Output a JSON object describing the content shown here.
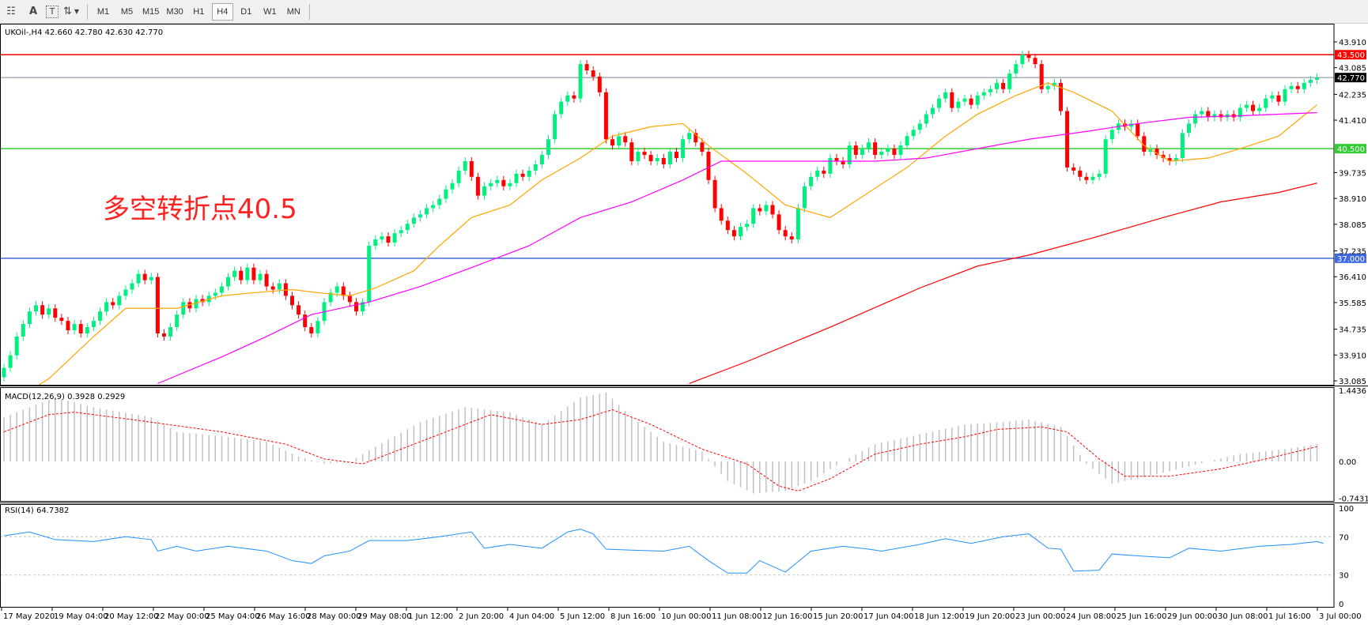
{
  "toolbar": {
    "icons": [
      "period-separator-icon",
      "text-A-icon",
      "text-label-icon",
      "arrows-icon"
    ],
    "timeframes": [
      "M1",
      "M5",
      "M15",
      "M30",
      "H1",
      "H4",
      "D1",
      "W1",
      "MN"
    ],
    "active_timeframe": "H4"
  },
  "main": {
    "symbol_header": "UKOil-,H4  42.660 42.780 42.630 42.770",
    "annotation": "多空转折点40.5",
    "annotation_color": "#ff0000",
    "price_ticks": [
      "43.910",
      "43.085",
      "42.235",
      "41.410",
      "39.735",
      "38.910",
      "38.085",
      "37.235",
      "36.410",
      "35.585",
      "34.735",
      "33.910",
      "33.085"
    ],
    "lines": [
      {
        "price": 43.5,
        "label": "43.500",
        "color": "#ff0000"
      },
      {
        "price": 42.77,
        "label": "42.770",
        "color": "#000000",
        "line_color": "#778899"
      },
      {
        "price": 40.5,
        "label": "40.500",
        "color": "#32cd32"
      },
      {
        "price": 37.0,
        "label": "37.000",
        "color": "#4169e1"
      }
    ]
  },
  "chart_data": [
    {
      "type": "candlestick",
      "title": "UKOil-,H4",
      "ylim": [
        33.085,
        43.91
      ],
      "bull_color": "#00f080",
      "bear_color": "#ff0000",
      "close": [
        33.5,
        33.9,
        34.5,
        34.9,
        35.3,
        35.5,
        35.2,
        35.4,
        35.1,
        35.0,
        34.7,
        34.9,
        34.6,
        34.8,
        35.0,
        35.3,
        35.6,
        35.5,
        35.8,
        36.0,
        36.2,
        36.5,
        36.3,
        36.4,
        34.6,
        34.5,
        34.8,
        35.2,
        35.6,
        35.4,
        35.7,
        35.6,
        35.8,
        35.9,
        36.1,
        36.4,
        36.6,
        36.3,
        36.7,
        36.3,
        36.5,
        36.1,
        36.0,
        36.2,
        35.8,
        35.5,
        35.2,
        34.8,
        34.6,
        35.0,
        35.6,
        35.9,
        36.1,
        35.8,
        35.6,
        35.3,
        35.6,
        37.4,
        37.6,
        37.7,
        37.5,
        37.8,
        37.9,
        38.1,
        38.3,
        38.4,
        38.6,
        38.7,
        38.9,
        39.2,
        39.4,
        39.8,
        40.1,
        39.6,
        39.0,
        39.3,
        39.4,
        39.5,
        39.3,
        39.4,
        39.7,
        39.6,
        39.8,
        40.0,
        40.3,
        40.8,
        41.6,
        42.0,
        42.2,
        42.1,
        43.2,
        43.0,
        42.8,
        42.3,
        40.8,
        40.6,
        40.9,
        40.7,
        40.1,
        40.4,
        40.3,
        40.1,
        40.2,
        40.0,
        40.4,
        40.2,
        40.8,
        41.0,
        40.7,
        40.4,
        39.5,
        38.6,
        38.2,
        37.9,
        37.7,
        38.0,
        38.1,
        38.6,
        38.5,
        38.7,
        38.4,
        37.9,
        37.7,
        37.6,
        38.6,
        39.3,
        39.6,
        39.8,
        39.7,
        40.2,
        40.1,
        40.0,
        40.6,
        40.3,
        40.5,
        40.7,
        40.3,
        40.4,
        40.5,
        40.3,
        40.6,
        40.9,
        41.1,
        41.3,
        41.6,
        41.8,
        42.1,
        42.3,
        41.8,
        42.0,
        42.1,
        41.9,
        42.2,
        42.3,
        42.4,
        42.6,
        42.4,
        42.9,
        43.2,
        43.5,
        43.4,
        43.2,
        42.4,
        42.5,
        42.6,
        41.7,
        39.9,
        39.8,
        39.6,
        39.5,
        39.6,
        39.7,
        40.8,
        41.1,
        41.3,
        41.2,
        41.3,
        40.9,
        40.4,
        40.5,
        40.3,
        40.2,
        40.1,
        40.2,
        41.0,
        41.3,
        41.6,
        41.7,
        41.5,
        41.6,
        41.5,
        41.6,
        41.5,
        41.8,
        41.9,
        41.7,
        41.8,
        42.1,
        42.2,
        42.0,
        42.4,
        42.5,
        42.4,
        42.6,
        42.7,
        42.77
      ],
      "moving_averages": [
        {
          "color": "#ffa500",
          "points": [
            [
              5,
              32.9
            ],
            [
              7,
              33.15
            ],
            [
              14,
              34.5
            ],
            [
              19,
              35.4
            ],
            [
              24,
              35.4
            ],
            [
              27,
              35.4
            ],
            [
              34,
              35.8
            ],
            [
              39,
              35.9
            ],
            [
              45,
              36.0
            ],
            [
              49,
              35.9
            ],
            [
              54,
              35.8
            ],
            [
              58,
              36.05
            ],
            [
              64,
              36.6
            ],
            [
              68,
              37.4
            ],
            [
              73,
              38.3
            ],
            [
              79,
              38.7
            ],
            [
              84,
              39.5
            ],
            [
              90,
              40.2
            ],
            [
              95,
              40.9
            ],
            [
              101,
              41.2
            ],
            [
              106,
              41.3
            ],
            [
              110,
              40.6
            ],
            [
              116,
              39.7
            ],
            [
              122,
              38.7
            ],
            [
              129,
              38.3
            ],
            [
              135,
              39.1
            ],
            [
              141,
              39.9
            ],
            [
              147,
              40.9
            ],
            [
              152,
              41.6
            ],
            [
              158,
              42.2
            ],
            [
              163,
              42.6
            ],
            [
              167,
              42.3
            ],
            [
              173,
              41.7
            ],
            [
              178,
              40.6
            ],
            [
              182,
              40.1
            ],
            [
              188,
              40.2
            ],
            [
              193,
              40.5
            ],
            [
              199,
              40.9
            ],
            [
              205,
              41.9
            ]
          ]
        },
        {
          "color": "#ff00ff",
          "points": [
            [
              24,
              33.0
            ],
            [
              34,
              33.85
            ],
            [
              41,
              34.5
            ],
            [
              48,
              35.2
            ],
            [
              57,
              35.6
            ],
            [
              65,
              36.1
            ],
            [
              73,
              36.7
            ],
            [
              82,
              37.4
            ],
            [
              90,
              38.3
            ],
            [
              98,
              38.8
            ],
            [
              106,
              39.5
            ],
            [
              112,
              40.1
            ],
            [
              120,
              40.1
            ],
            [
              129,
              40.1
            ],
            [
              136,
              40.1
            ],
            [
              144,
              40.2
            ],
            [
              152,
              40.5
            ],
            [
              160,
              40.8
            ],
            [
              169,
              41.05
            ],
            [
              177,
              41.3
            ],
            [
              185,
              41.5
            ],
            [
              193,
              41.55
            ],
            [
              205,
              41.65
            ]
          ]
        },
        {
          "color": "#ff0000",
          "points": [
            [
              107,
              33.0
            ],
            [
              116,
              33.7
            ],
            [
              129,
              34.8
            ],
            [
              143,
              36.05
            ],
            [
              152,
              36.75
            ],
            [
              160,
              37.1
            ],
            [
              170,
              37.65
            ],
            [
              181,
              38.3
            ],
            [
              190,
              38.8
            ],
            [
              199,
              39.1
            ],
            [
              205,
              39.4
            ]
          ]
        }
      ],
      "x_tick_labels": [
        "17 May 2020",
        "19 May 04:00",
        "20 May 12:00",
        "22 May 00:00",
        "25 May 04:00",
        "26 May 16:00",
        "28 May 00:00",
        "29 May 08:00",
        "1 Jun 12:00",
        "2 Jun 20:00",
        "4 Jun 04:00",
        "5 Jun 12:00",
        "8 Jun 16:00",
        "10 Jun 00:00",
        "11 Jun 08:00",
        "12 Jun 16:00",
        "15 Jun 20:00",
        "17 Jun 04:00",
        "18 Jun 12:00",
        "19 Jun 20:00",
        "23 Jun 00:00",
        "24 Jun 08:00",
        "25 Jun 16:00",
        "29 Jun 00:00",
        "30 Jun 08:00",
        "1 Jul 16:00",
        "3 Jul 00:00"
      ]
    },
    {
      "type": "bar",
      "title": "MACD(12,26,9) 0.3928 0.2929",
      "ylim": [
        -0.7431,
        1.4436
      ],
      "y_tick_labels": [
        "1.4436",
        "0.00",
        "-0.7431"
      ],
      "histogram_color": "#c0c0c0",
      "signal_color": "#ff0000",
      "histogram": [
        [
          0,
          0.9
        ],
        [
          8,
          1.3
        ],
        [
          14,
          1.1
        ],
        [
          23,
          0.9
        ],
        [
          27,
          0.6
        ],
        [
          35,
          0.5
        ],
        [
          41,
          0.4
        ],
        [
          46,
          0.1
        ],
        [
          50,
          -0.05
        ],
        [
          54,
          0.0
        ],
        [
          58,
          0.3
        ],
        [
          65,
          0.8
        ],
        [
          72,
          1.1
        ],
        [
          79,
          1.0
        ],
        [
          84,
          0.75
        ],
        [
          90,
          1.3
        ],
        [
          94,
          1.4
        ],
        [
          98,
          0.9
        ],
        [
          103,
          0.4
        ],
        [
          109,
          0.2
        ],
        [
          113,
          -0.4
        ],
        [
          117,
          -0.65
        ],
        [
          122,
          -0.6
        ],
        [
          126,
          -0.4
        ],
        [
          131,
          0.0
        ],
        [
          136,
          0.35
        ],
        [
          143,
          0.55
        ],
        [
          150,
          0.75
        ],
        [
          156,
          0.8
        ],
        [
          160,
          0.85
        ],
        [
          165,
          0.7
        ],
        [
          169,
          -0.05
        ],
        [
          173,
          -0.45
        ],
        [
          177,
          -0.35
        ],
        [
          182,
          -0.2
        ],
        [
          188,
          0.0
        ],
        [
          193,
          0.15
        ],
        [
          200,
          0.25
        ],
        [
          205,
          0.35
        ]
      ],
      "signal": [
        [
          0,
          0.6
        ],
        [
          7,
          0.95
        ],
        [
          11,
          1.0
        ],
        [
          20,
          0.85
        ],
        [
          34,
          0.6
        ],
        [
          44,
          0.35
        ],
        [
          50,
          0.05
        ],
        [
          56,
          -0.05
        ],
        [
          61,
          0.2
        ],
        [
          68,
          0.55
        ],
        [
          76,
          0.95
        ],
        [
          84,
          0.75
        ],
        [
          90,
          0.85
        ],
        [
          95,
          1.05
        ],
        [
          101,
          0.75
        ],
        [
          109,
          0.25
        ],
        [
          116,
          -0.05
        ],
        [
          121,
          -0.5
        ],
        [
          124,
          -0.6
        ],
        [
          129,
          -0.35
        ],
        [
          136,
          0.15
        ],
        [
          143,
          0.35
        ],
        [
          150,
          0.5
        ],
        [
          155,
          0.65
        ],
        [
          162,
          0.7
        ],
        [
          166,
          0.6
        ],
        [
          171,
          0.05
        ],
        [
          175,
          -0.3
        ],
        [
          182,
          -0.3
        ],
        [
          190,
          -0.15
        ],
        [
          197,
          0.05
        ],
        [
          205,
          0.3
        ]
      ]
    },
    {
      "type": "line",
      "title": "RSI(14) 64.7382",
      "ylim": [
        0,
        100
      ],
      "y_tick_labels": [
        "100",
        "70",
        "30",
        "0"
      ],
      "levels": [
        70,
        30
      ],
      "color": "#1e90ff",
      "values": [
        [
          0,
          71
        ],
        [
          4,
          75
        ],
        [
          8,
          67
        ],
        [
          14,
          65
        ],
        [
          19,
          70
        ],
        [
          23,
          67
        ],
        [
          24,
          55
        ],
        [
          27,
          60
        ],
        [
          30,
          55
        ],
        [
          35,
          60
        ],
        [
          41,
          55
        ],
        [
          45,
          45
        ],
        [
          48,
          42
        ],
        [
          50,
          50
        ],
        [
          54,
          55
        ],
        [
          57,
          66
        ],
        [
          63,
          66
        ],
        [
          68,
          70
        ],
        [
          73,
          75
        ],
        [
          75,
          58
        ],
        [
          79,
          62
        ],
        [
          84,
          58
        ],
        [
          88,
          75
        ],
        [
          90,
          78
        ],
        [
          92,
          73
        ],
        [
          94,
          57
        ],
        [
          98,
          56
        ],
        [
          103,
          55
        ],
        [
          107,
          60
        ],
        [
          110,
          45
        ],
        [
          113,
          32
        ],
        [
          116,
          32
        ],
        [
          118,
          45
        ],
        [
          122,
          33
        ],
        [
          126,
          55
        ],
        [
          131,
          60
        ],
        [
          135,
          57
        ],
        [
          137,
          55
        ],
        [
          143,
          62
        ],
        [
          147,
          68
        ],
        [
          151,
          63
        ],
        [
          156,
          70
        ],
        [
          160,
          73
        ],
        [
          163,
          58
        ],
        [
          165,
          57
        ],
        [
          167,
          34
        ],
        [
          171,
          35
        ],
        [
          173,
          52
        ],
        [
          177,
          50
        ],
        [
          182,
          48
        ],
        [
          185,
          58
        ],
        [
          190,
          55
        ],
        [
          196,
          60
        ],
        [
          201,
          62
        ],
        [
          205,
          65
        ],
        [
          206,
          63
        ]
      ]
    }
  ]
}
